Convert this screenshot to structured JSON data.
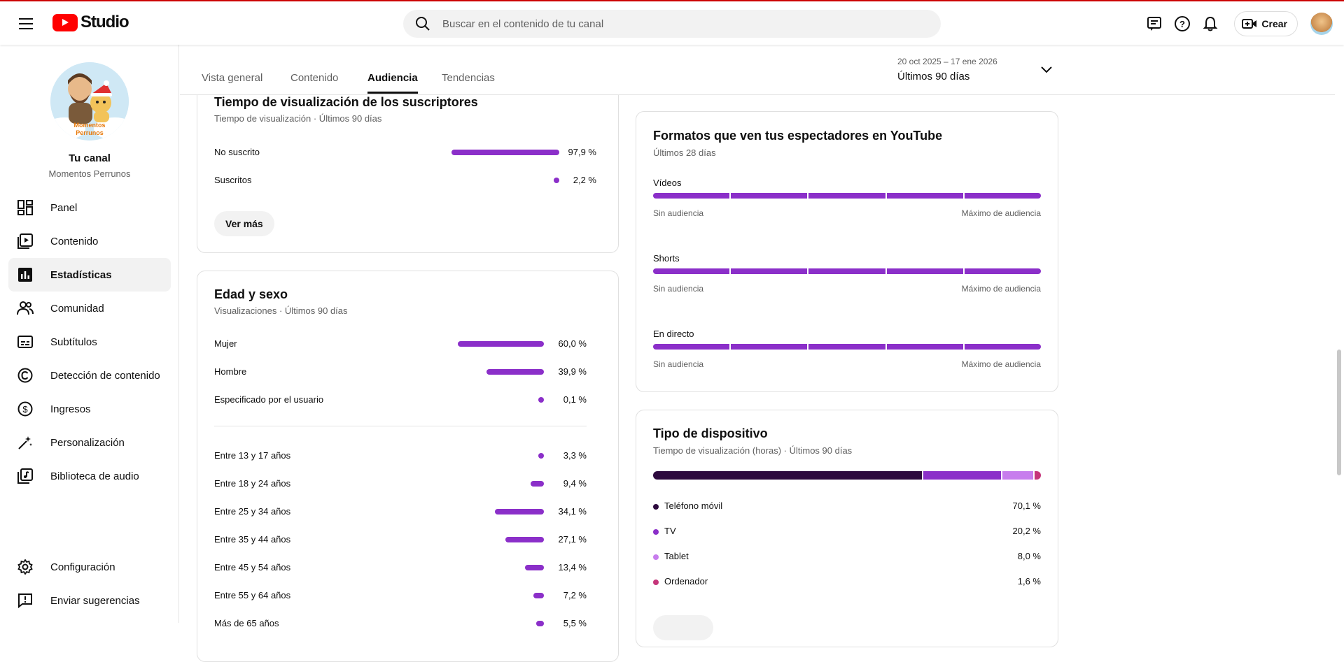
{
  "app": {
    "name": "Studio"
  },
  "search": {
    "placeholder": "Buscar en el contenido de tu canal"
  },
  "topbar": {
    "create_label": "Crear"
  },
  "channel": {
    "title": "Tu canal",
    "name": "Momentos Perrunos",
    "logo_line1": "Momentos",
    "logo_line2": "Perrunos"
  },
  "sidebar": {
    "items": [
      {
        "label": "Panel",
        "icon": "dashboard-icon"
      },
      {
        "label": "Contenido",
        "icon": "content-icon"
      },
      {
        "label": "Estadísticas",
        "icon": "analytics-icon",
        "active": true
      },
      {
        "label": "Comunidad",
        "icon": "community-icon"
      },
      {
        "label": "Subtítulos",
        "icon": "subtitles-icon"
      },
      {
        "label": "Detección de contenido",
        "icon": "copyright-icon"
      },
      {
        "label": "Ingresos",
        "icon": "earn-icon"
      },
      {
        "label": "Personalización",
        "icon": "customization-icon"
      },
      {
        "label": "Biblioteca de audio",
        "icon": "audio-library-icon"
      }
    ],
    "bottom": [
      {
        "label": "Configuración",
        "icon": "gear-icon"
      },
      {
        "label": "Enviar sugerencias",
        "icon": "feedback-icon"
      }
    ]
  },
  "tabs": [
    {
      "label": "Vista general"
    },
    {
      "label": "Contenido"
    },
    {
      "label": "Audiencia",
      "active": true
    },
    {
      "label": "Tendencias"
    }
  ],
  "date_range": {
    "range": "20 oct 2025 – 17 ene 2026",
    "label": "Últimos 90 días"
  },
  "subs_card": {
    "title": "Tiempo de visualización de los suscriptores",
    "subtitle": "Tiempo de visualización · Últimos 90 días",
    "rows": [
      {
        "label": "No suscrito",
        "value": "97,9 %",
        "fraction": 0.979
      },
      {
        "label": "Suscritos",
        "value": "2,2 %",
        "fraction": 0.022
      }
    ],
    "button": "Ver más"
  },
  "age_card": {
    "title": "Edad y sexo",
    "subtitle": "Visualizaciones · Últimos 90 días",
    "gender": [
      {
        "label": "Mujer",
        "value": "60,0 %",
        "fraction": 0.6
      },
      {
        "label": "Hombre",
        "value": "39,9 %",
        "fraction": 0.399
      },
      {
        "label": "Especificado por el usuario",
        "value": "0,1 %",
        "fraction": 0.001
      }
    ],
    "ages": [
      {
        "label": "Entre 13 y 17 años",
        "value": "3,3 %",
        "fraction": 0.033
      },
      {
        "label": "Entre 18 y 24 años",
        "value": "9,4 %",
        "fraction": 0.094
      },
      {
        "label": "Entre 25 y 34 años",
        "value": "34,1 %",
        "fraction": 0.341
      },
      {
        "label": "Entre 35 y 44 años",
        "value": "27,1 %",
        "fraction": 0.271
      },
      {
        "label": "Entre 45 y 54 años",
        "value": "13,4 %",
        "fraction": 0.134
      },
      {
        "label": "Entre 55 y 64 años",
        "value": "7,2 %",
        "fraction": 0.072
      },
      {
        "label": "Más de 65 años",
        "value": "5,5 %",
        "fraction": 0.055
      }
    ]
  },
  "formats_card": {
    "title": "Formatos que ven tus espectadores en YouTube",
    "subtitle": "Últimos 28 días",
    "min_label": "Sin audiencia",
    "max_label": "Máximo de audiencia",
    "formats": [
      {
        "label": "Vídeos"
      },
      {
        "label": "Shorts"
      },
      {
        "label": "En directo"
      }
    ]
  },
  "device_card": {
    "title": "Tipo de dispositivo",
    "subtitle": "Tiempo de visualización (horas) · Últimos 90 días",
    "devices": [
      {
        "label": "Teléfono móvil",
        "value": "70,1 %",
        "fraction": 0.701,
        "color": "#2d0a3e"
      },
      {
        "label": "TV",
        "value": "20,2 %",
        "fraction": 0.202,
        "color": "#8b2fc9"
      },
      {
        "label": "Tablet",
        "value": "8,0 %",
        "fraction": 0.08,
        "color": "#c77ded"
      },
      {
        "label": "Ordenador",
        "value": "1,6 %",
        "fraction": 0.016,
        "color": "#c5357a"
      }
    ]
  },
  "colors": {
    "accent": "#8b2fc9",
    "brand": "#ff0000"
  }
}
